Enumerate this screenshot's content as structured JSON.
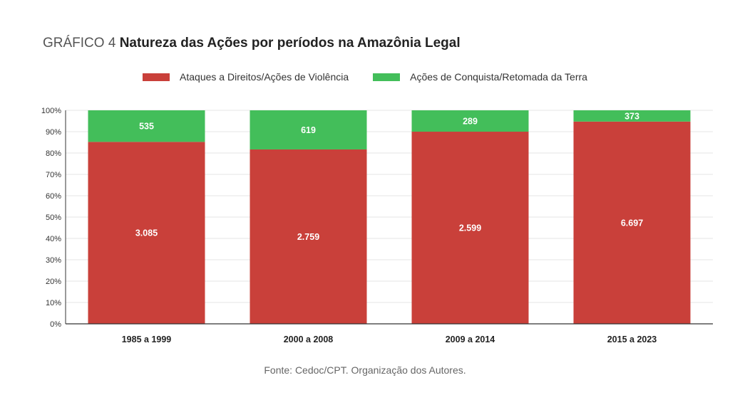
{
  "title": {
    "prefix": "GRÁFICO 4",
    "text": "Natureza das Ações por períodos na Amazônia Legal"
  },
  "source": "Fonte: Cedoc/CPT. Organização dos Autores.",
  "colors": {
    "series1": "#c9403a",
    "series2": "#43be5a",
    "grid": "#e6e6e6",
    "axis": "#333333"
  },
  "chart_data": {
    "type": "bar",
    "stacked": "percent",
    "categories": [
      "1985 a 1999",
      "2000 a 2008",
      "2009 a 2014",
      "2015 a 2023"
    ],
    "series": [
      {
        "name": "Ataques a Direitos/Ações de Violência",
        "values": [
          3085,
          2759,
          2599,
          6697
        ],
        "labels": [
          "3.085",
          "2.759",
          "2.599",
          "6.697"
        ]
      },
      {
        "name": "Ações de Conquista/Retomada da Terra",
        "values": [
          535,
          619,
          289,
          373
        ],
        "labels": [
          "535",
          "619",
          "289",
          "373"
        ]
      }
    ],
    "y_ticks": [
      "0%",
      "10%",
      "20%",
      "30%",
      "40%",
      "50%",
      "60%",
      "70%",
      "80%",
      "90%",
      "100%"
    ],
    "ylim": [
      0,
      100
    ],
    "grid": true,
    "legend": "top-center"
  }
}
